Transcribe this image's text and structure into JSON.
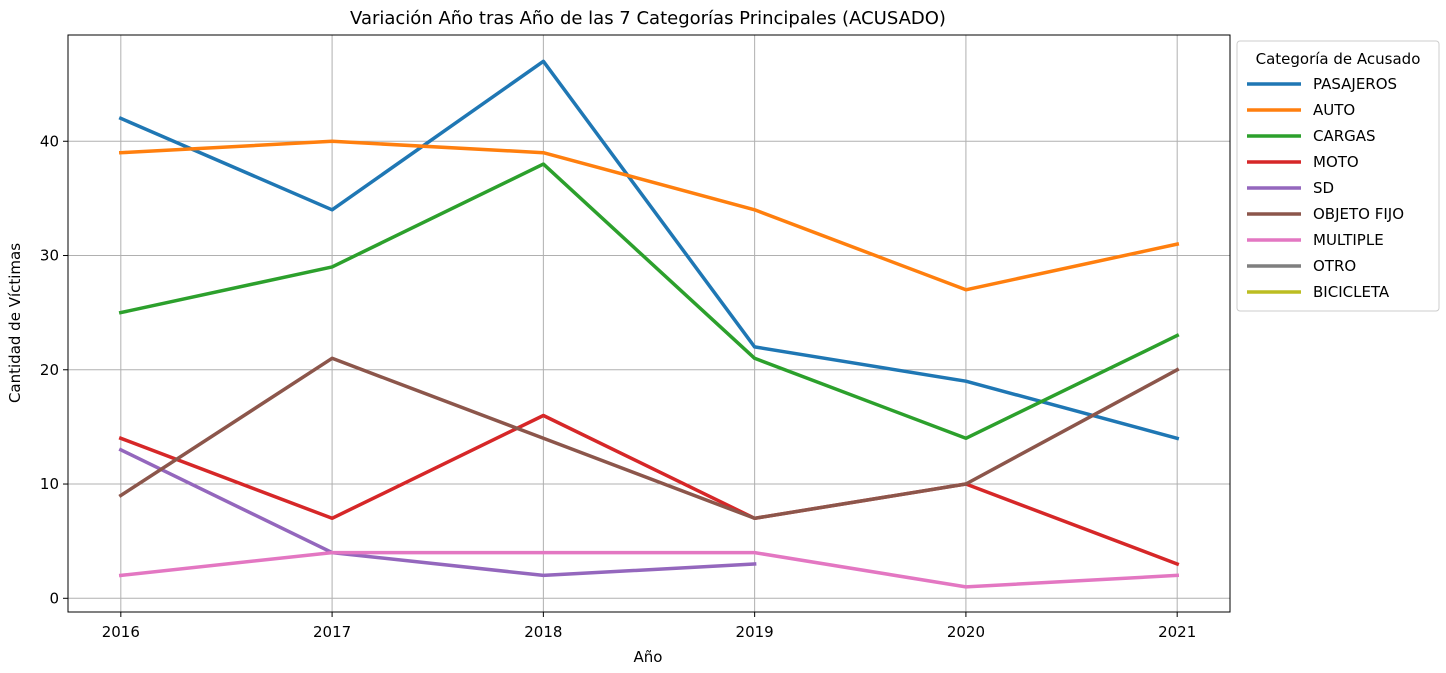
{
  "chart_data": {
    "type": "line",
    "title": "Variación Año tras Año de las 7 Categorías Principales (ACUSADO)",
    "xlabel": "Año",
    "ylabel": "Cantidad de Víctimas",
    "x": [
      2016,
      2017,
      2018,
      2019,
      2020,
      2021
    ],
    "xlim": [
      2015.75,
      2021.25
    ],
    "ylim": [
      -1.2,
      49.3
    ],
    "yticks": [
      0,
      10,
      20,
      30,
      40
    ],
    "grid": true,
    "legend": {
      "title": "Categoría de Acusado",
      "placement": "outside right"
    },
    "series": [
      {
        "name": "PASAJEROS",
        "color": "#1f77b4",
        "values": [
          42,
          34,
          47,
          22,
          19,
          14
        ]
      },
      {
        "name": "AUTO",
        "color": "#ff7f0e",
        "values": [
          39,
          40,
          39,
          34,
          27,
          31
        ]
      },
      {
        "name": "CARGAS",
        "color": "#2ca02c",
        "values": [
          25,
          29,
          38,
          21,
          14,
          23
        ]
      },
      {
        "name": "MOTO",
        "color": "#d62728",
        "values": [
          14,
          7,
          16,
          7,
          10,
          3
        ]
      },
      {
        "name": "SD",
        "color": "#9467bd",
        "values": [
          13,
          4,
          2,
          3,
          null,
          null
        ]
      },
      {
        "name": "OBJETO FIJO",
        "color": "#8c564b",
        "values": [
          9,
          21,
          14,
          7,
          10,
          20
        ]
      },
      {
        "name": "MULTIPLE",
        "color": "#e377c2",
        "values": [
          2,
          4,
          4,
          4,
          1,
          2
        ]
      },
      {
        "name": "OTRO",
        "color": "#7f7f7f",
        "values": [
          null,
          null,
          null,
          null,
          null,
          null
        ]
      },
      {
        "name": "BICICLETA",
        "color": "#bcbd22",
        "values": [
          null,
          null,
          null,
          null,
          null,
          null
        ]
      }
    ]
  }
}
